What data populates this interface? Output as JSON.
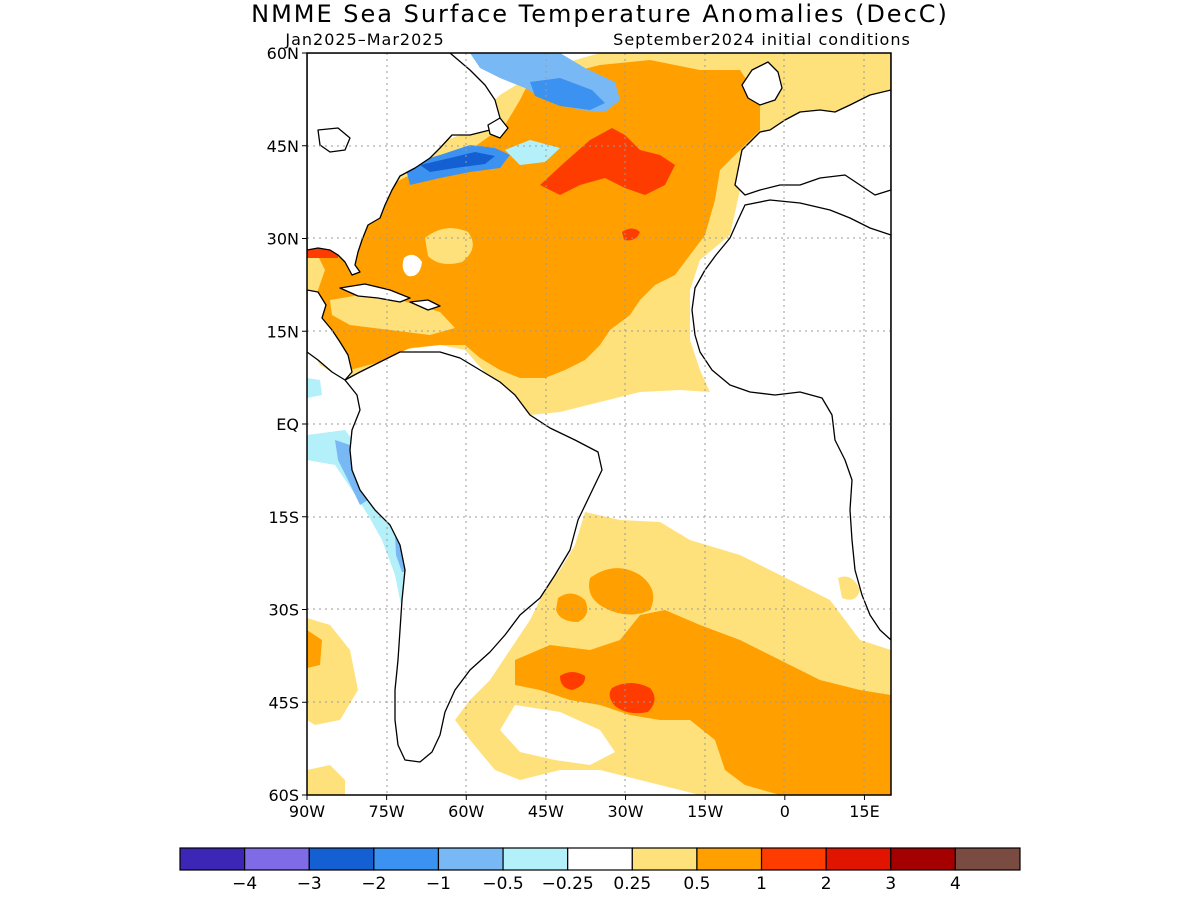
{
  "title": "NMME Sea Surface Temperature Anomalies (DecC)",
  "period": "Jan2025–Mar2025",
  "initial_conditions": "September2024 initial conditions",
  "map": {
    "projection": "lat-lon",
    "lon_range": [
      -90,
      20
    ],
    "lat_range": [
      -60,
      60
    ],
    "gridlines": "dotted every 15 degrees",
    "lat_ticks": [
      {
        "value": 60,
        "label": "60N"
      },
      {
        "value": 45,
        "label": "45N"
      },
      {
        "value": 30,
        "label": "30N"
      },
      {
        "value": 15,
        "label": "15N"
      },
      {
        "value": 0,
        "label": "EQ"
      },
      {
        "value": -15,
        "label": "15S"
      },
      {
        "value": -30,
        "label": "30S"
      },
      {
        "value": -45,
        "label": "45S"
      },
      {
        "value": -60,
        "label": "60S"
      }
    ],
    "lon_ticks": [
      {
        "value": -90,
        "label": "90W"
      },
      {
        "value": -75,
        "label": "75W"
      },
      {
        "value": -60,
        "label": "60W"
      },
      {
        "value": -45,
        "label": "45W"
      },
      {
        "value": -30,
        "label": "30W"
      },
      {
        "value": -15,
        "label": "15W"
      },
      {
        "value": 0,
        "label": "0"
      },
      {
        "value": 15,
        "label": "15E"
      }
    ]
  },
  "colorbar": {
    "colors": [
      "#3b26b6",
      "#7f6be6",
      "#1460d2",
      "#3c92f0",
      "#78b8f4",
      "#b4f0fa",
      "#ffffff",
      "#ffe17b",
      "#ffa000",
      "#ff3c00",
      "#e11400",
      "#a50000",
      "#7a4b41"
    ],
    "labels": [
      "−4",
      "−3",
      "−2",
      "−1",
      "−0.5",
      "−0.25",
      "0.25",
      "0.5",
      "1",
      "2",
      "3",
      "4"
    ]
  },
  "colors": {
    "land": "#ffffff",
    "coast": "#000000",
    "grid": "#9a9a9a"
  }
}
